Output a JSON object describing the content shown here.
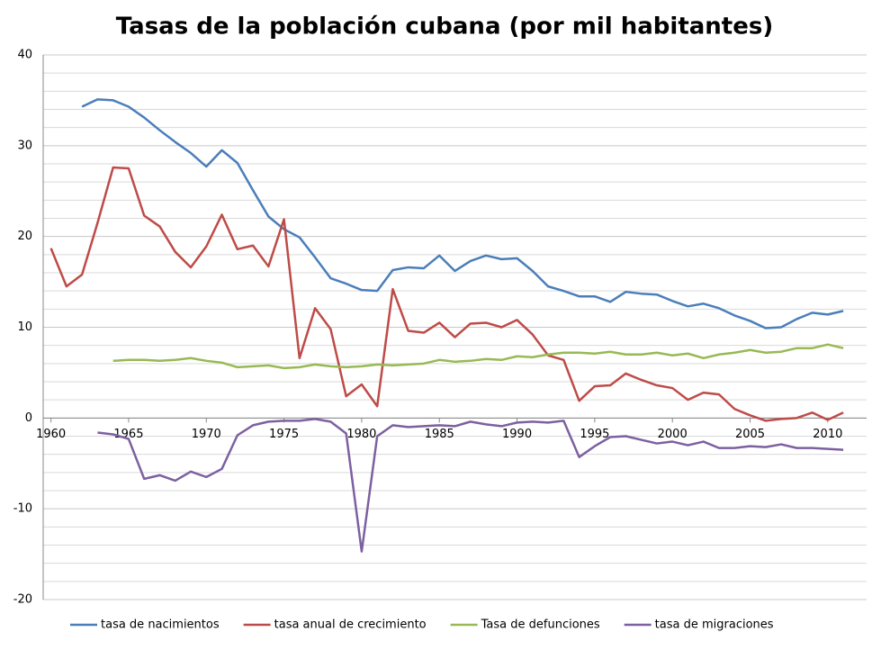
{
  "chart_data": {
    "type": "line",
    "title": "Tasas de la población cubana (por mil habitantes)",
    "x": [
      1960,
      1961,
      1962,
      1963,
      1964,
      1965,
      1966,
      1967,
      1968,
      1969,
      1970,
      1971,
      1972,
      1973,
      1974,
      1975,
      1976,
      1977,
      1978,
      1979,
      1980,
      1981,
      1982,
      1983,
      1984,
      1985,
      1986,
      1987,
      1988,
      1989,
      1990,
      1991,
      1992,
      1993,
      1994,
      1995,
      1996,
      1997,
      1998,
      1999,
      2000,
      2001,
      2002,
      2003,
      2004,
      2005,
      2006,
      2007,
      2008,
      2009,
      2010,
      2011
    ],
    "series": [
      {
        "name": "tasa de nacimientos",
        "color": "#4a7ebb",
        "values": [
          null,
          null,
          34.3,
          35.1,
          35.0,
          34.3,
          33.1,
          31.7,
          30.4,
          29.2,
          27.7,
          29.5,
          28.1,
          25.1,
          22.2,
          20.8,
          19.9,
          17.7,
          15.4,
          14.8,
          14.1,
          14.0,
          16.3,
          16.6,
          16.5,
          17.9,
          16.2,
          17.3,
          17.9,
          17.5,
          17.6,
          16.2,
          14.5,
          14.0,
          13.4,
          13.4,
          12.8,
          13.9,
          13.7,
          13.6,
          12.9,
          12.3,
          12.6,
          12.1,
          11.3,
          10.7,
          9.9,
          10.0,
          10.9,
          11.6,
          11.4,
          11.8
        ]
      },
      {
        "name": "tasa anual de crecimiento",
        "color": "#be4b48",
        "values": [
          18.7,
          14.5,
          15.8,
          21.5,
          27.6,
          27.5,
          22.3,
          21.1,
          18.3,
          16.6,
          18.9,
          22.4,
          18.6,
          19.0,
          16.7,
          21.9,
          6.6,
          12.1,
          9.8,
          2.4,
          3.7,
          1.3,
          14.2,
          9.6,
          9.4,
          10.5,
          8.9,
          10.4,
          10.5,
          10.0,
          10.8,
          9.2,
          6.9,
          6.4,
          1.9,
          3.5,
          3.6,
          4.9,
          4.2,
          3.6,
          3.3,
          2.0,
          2.8,
          2.6,
          1.0,
          0.3,
          -0.3,
          -0.1,
          0.0,
          0.6,
          -0.2,
          0.6
        ]
      },
      {
        "name": "Tasa de defunciones",
        "color": "#98b954",
        "values": [
          null,
          null,
          null,
          null,
          6.3,
          6.4,
          6.4,
          6.3,
          6.4,
          6.6,
          6.3,
          6.1,
          5.6,
          5.7,
          5.8,
          5.5,
          5.6,
          5.9,
          5.7,
          5.6,
          5.7,
          5.9,
          5.8,
          5.9,
          6.0,
          6.4,
          6.2,
          6.3,
          6.5,
          6.4,
          6.8,
          6.7,
          7.0,
          7.2,
          7.2,
          7.1,
          7.3,
          7.0,
          7.0,
          7.2,
          6.9,
          7.1,
          6.6,
          7.0,
          7.2,
          7.5,
          7.2,
          7.3,
          7.7,
          7.7,
          8.1,
          7.7
        ]
      },
      {
        "name": "tasa de migraciones",
        "color": "#7d60a0",
        "values": [
          null,
          null,
          null,
          -1.6,
          -1.8,
          -2.3,
          -6.7,
          -6.3,
          -6.9,
          -5.9,
          -6.5,
          -5.6,
          -1.9,
          -0.8,
          -0.4,
          -0.3,
          -0.3,
          -0.1,
          -0.4,
          -1.7,
          -14.7,
          -2.0,
          -0.8,
          -1.0,
          -0.9,
          -0.8,
          -0.9,
          -0.4,
          -0.7,
          -0.9,
          -0.5,
          -0.4,
          -0.5,
          -0.3,
          -4.3,
          -3.1,
          -2.1,
          -2.0,
          -2.4,
          -2.8,
          -2.6,
          -3.0,
          -2.6,
          -3.3,
          -3.3,
          -3.1,
          -3.2,
          -2.9,
          -3.3,
          -3.3,
          -3.4,
          -3.5
        ]
      }
    ],
    "xlim": [
      1959.5,
      2012.5
    ],
    "xticks": [
      1960,
      1965,
      1970,
      1975,
      1980,
      1985,
      1990,
      1995,
      2000,
      2005,
      2010
    ],
    "ylim": [
      -20,
      40
    ],
    "yticks": [
      -20,
      -10,
      0,
      10,
      20,
      30,
      40
    ],
    "yminorticks": [
      -18,
      -16,
      -14,
      -12,
      -8,
      -6,
      -4,
      -2,
      2,
      4,
      6,
      8,
      12,
      14,
      16,
      18,
      22,
      24,
      26,
      28,
      32,
      34,
      36,
      38
    ],
    "grid": true,
    "legend": "bottom"
  }
}
